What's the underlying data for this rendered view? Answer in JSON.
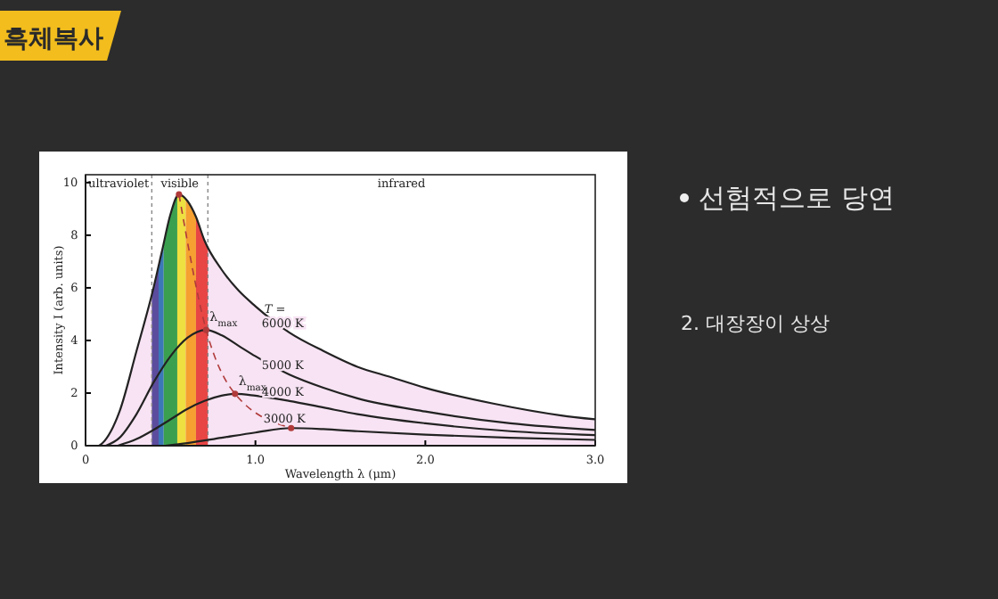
{
  "chart_data": {
    "type": "line",
    "title": "흑체복사",
    "xlabel": "Wavelength λ (μm)",
    "ylabel": "Intensity I (arb. units)",
    "legend_title": "T =",
    "xlim": [
      0,
      3.0
    ],
    "ylim": [
      0,
      10.3
    ],
    "xticks": [
      0,
      {
        "value": 1,
        "label": "1.0"
      },
      {
        "value": 2,
        "label": "2.0"
      },
      {
        "value": 3,
        "label": "3.0"
      }
    ],
    "yticks": [
      0,
      2,
      4,
      6,
      8,
      10
    ],
    "grid": false,
    "series": [
      {
        "name": "6000 K",
        "type": "area",
        "color": "#f7e3f3",
        "x": [
          0.08,
          0.1,
          0.2,
          0.3,
          0.4,
          0.45,
          0.5,
          0.55,
          0.6,
          0.65,
          0.7,
          0.8,
          0.9,
          1.0,
          1.2,
          1.4,
          1.6,
          1.8,
          2.0,
          2.4,
          2.8,
          3.0
        ],
        "values": [
          0,
          0.1,
          1.3,
          3.6,
          6.0,
          7.4,
          8.8,
          9.55,
          9.3,
          8.7,
          7.8,
          6.7,
          5.9,
          5.3,
          4.3,
          3.6,
          3.0,
          2.6,
          2.2,
          1.6,
          1.15,
          1.0
        ]
      },
      {
        "name": "5000 K",
        "color": "#222222",
        "x": [
          0.12,
          0.2,
          0.3,
          0.4,
          0.5,
          0.6,
          0.71,
          0.8,
          0.9,
          1.0,
          1.2,
          1.4,
          1.6,
          2.0,
          2.5,
          3.0
        ],
        "values": [
          0,
          0.3,
          1.2,
          2.4,
          3.4,
          4.1,
          4.4,
          4.2,
          3.8,
          3.4,
          2.7,
          2.2,
          1.8,
          1.3,
          0.85,
          0.6
        ]
      },
      {
        "name": "4000 K",
        "color": "#222222",
        "x": [
          0.19,
          0.3,
          0.4,
          0.5,
          0.6,
          0.7,
          0.8,
          0.88,
          1.0,
          1.2,
          1.4,
          1.6,
          2.0,
          2.5,
          3.0
        ],
        "values": [
          0,
          0.25,
          0.6,
          1.0,
          1.4,
          1.7,
          1.9,
          1.97,
          1.9,
          1.7,
          1.45,
          1.2,
          0.85,
          0.55,
          0.4
        ]
      },
      {
        "name": "3000 K",
        "color": "#222222",
        "x": [
          0.47,
          0.6,
          0.8,
          1.0,
          1.21,
          1.4,
          1.6,
          2.0,
          2.5,
          3.0
        ],
        "values": [
          0,
          0.1,
          0.3,
          0.5,
          0.67,
          0.63,
          0.55,
          0.42,
          0.3,
          0.22
        ]
      },
      {
        "type": "line",
        "line_style": "dashed",
        "marker": "circle",
        "color": "#b03a3a",
        "x": [
          0.55,
          0.71,
          0.88,
          1.21
        ],
        "values": [
          9.55,
          4.4,
          1.97,
          0.67
        ]
      }
    ],
    "bands": [
      {
        "axis": "x",
        "from": 0.39,
        "to": 0.43,
        "color": "#5c4c9e"
      },
      {
        "axis": "x",
        "from": 0.43,
        "to": 0.46,
        "color": "#3b78b8"
      },
      {
        "axis": "x",
        "from": 0.46,
        "to": 0.54,
        "color": "#3aa050"
      },
      {
        "axis": "x",
        "from": 0.54,
        "to": 0.59,
        "color": "#eee040"
      },
      {
        "axis": "x",
        "from": 0.59,
        "to": 0.65,
        "color": "#f5a030"
      },
      {
        "axis": "x",
        "from": 0.65,
        "to": 0.72,
        "color": "#e84545"
      }
    ],
    "ref_lines": [
      {
        "axis": "x",
        "value": 0.39,
        "line_style": "dashed"
      },
      {
        "axis": "x",
        "value": 0.72,
        "line_style": "dashed"
      }
    ],
    "annotations": [
      "ultraviolet",
      "visible",
      "infrared",
      {
        "text": "λ$_{max}$",
        "x": 0.71,
        "y": 4.4
      },
      {
        "text": "λ$_{max}$",
        "x": 0.88,
        "y": 1.97
      },
      "선험적으로 당연",
      "2. 대장장이 상상"
    ]
  }
}
